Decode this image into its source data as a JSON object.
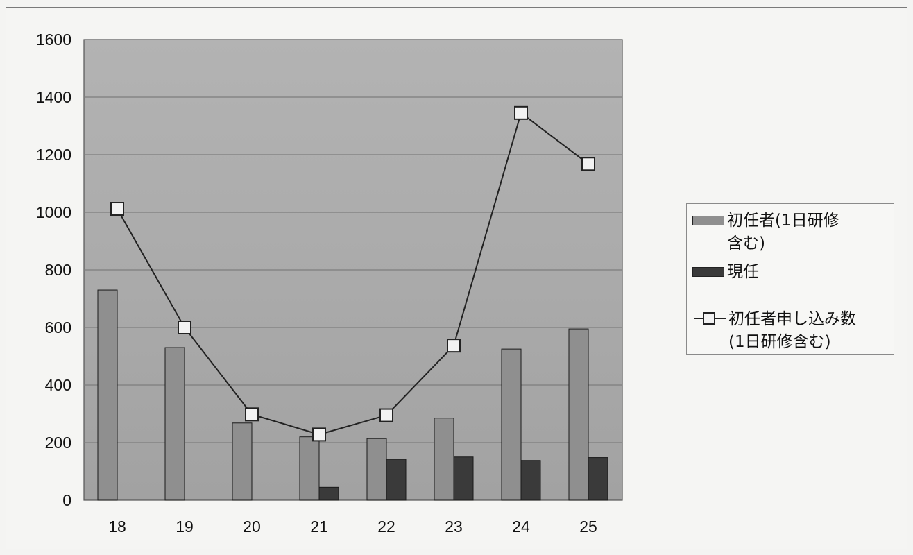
{
  "chart_data": {
    "type": "bar",
    "categories": [
      "18",
      "19",
      "20",
      "21",
      "22",
      "23",
      "24",
      "25"
    ],
    "ylim": [
      0,
      1600
    ],
    "yticks": [
      0,
      200,
      400,
      600,
      800,
      1000,
      1200,
      1400,
      1600
    ],
    "grid": true,
    "legend_position": "right",
    "series": [
      {
        "name": "初任者(1日研修含む)",
        "type": "bar",
        "color": "#8f8f8f",
        "values": [
          730,
          530,
          268,
          220,
          214,
          285,
          525,
          595
        ]
      },
      {
        "name": "現任",
        "type": "bar",
        "color": "#3a3a3a",
        "values": [
          0,
          0,
          0,
          45,
          142,
          150,
          138,
          148
        ]
      },
      {
        "name": "初任者申し込み数(1日研修含む)",
        "type": "line",
        "marker": "square",
        "color": "#222222",
        "values": [
          1012,
          600,
          298,
          228,
          295,
          537,
          1345,
          1168
        ]
      }
    ]
  },
  "legend": {
    "entry1_line1": "初任者(1日研修",
    "entry1_line2": "含む)",
    "entry2": "現任",
    "entry3_line1": "初任者申し込み数",
    "entry3_line2": "(1日研修含む)"
  },
  "colors": {
    "plot_background": "#a9a9a9",
    "frame_background": "#f5f5f3",
    "gridline": "#7e7e7e",
    "bar_initial": "#8f8f8f",
    "bar_current": "#3a3a3a",
    "line": "#222222",
    "marker_fill": "#f2f2f2"
  }
}
